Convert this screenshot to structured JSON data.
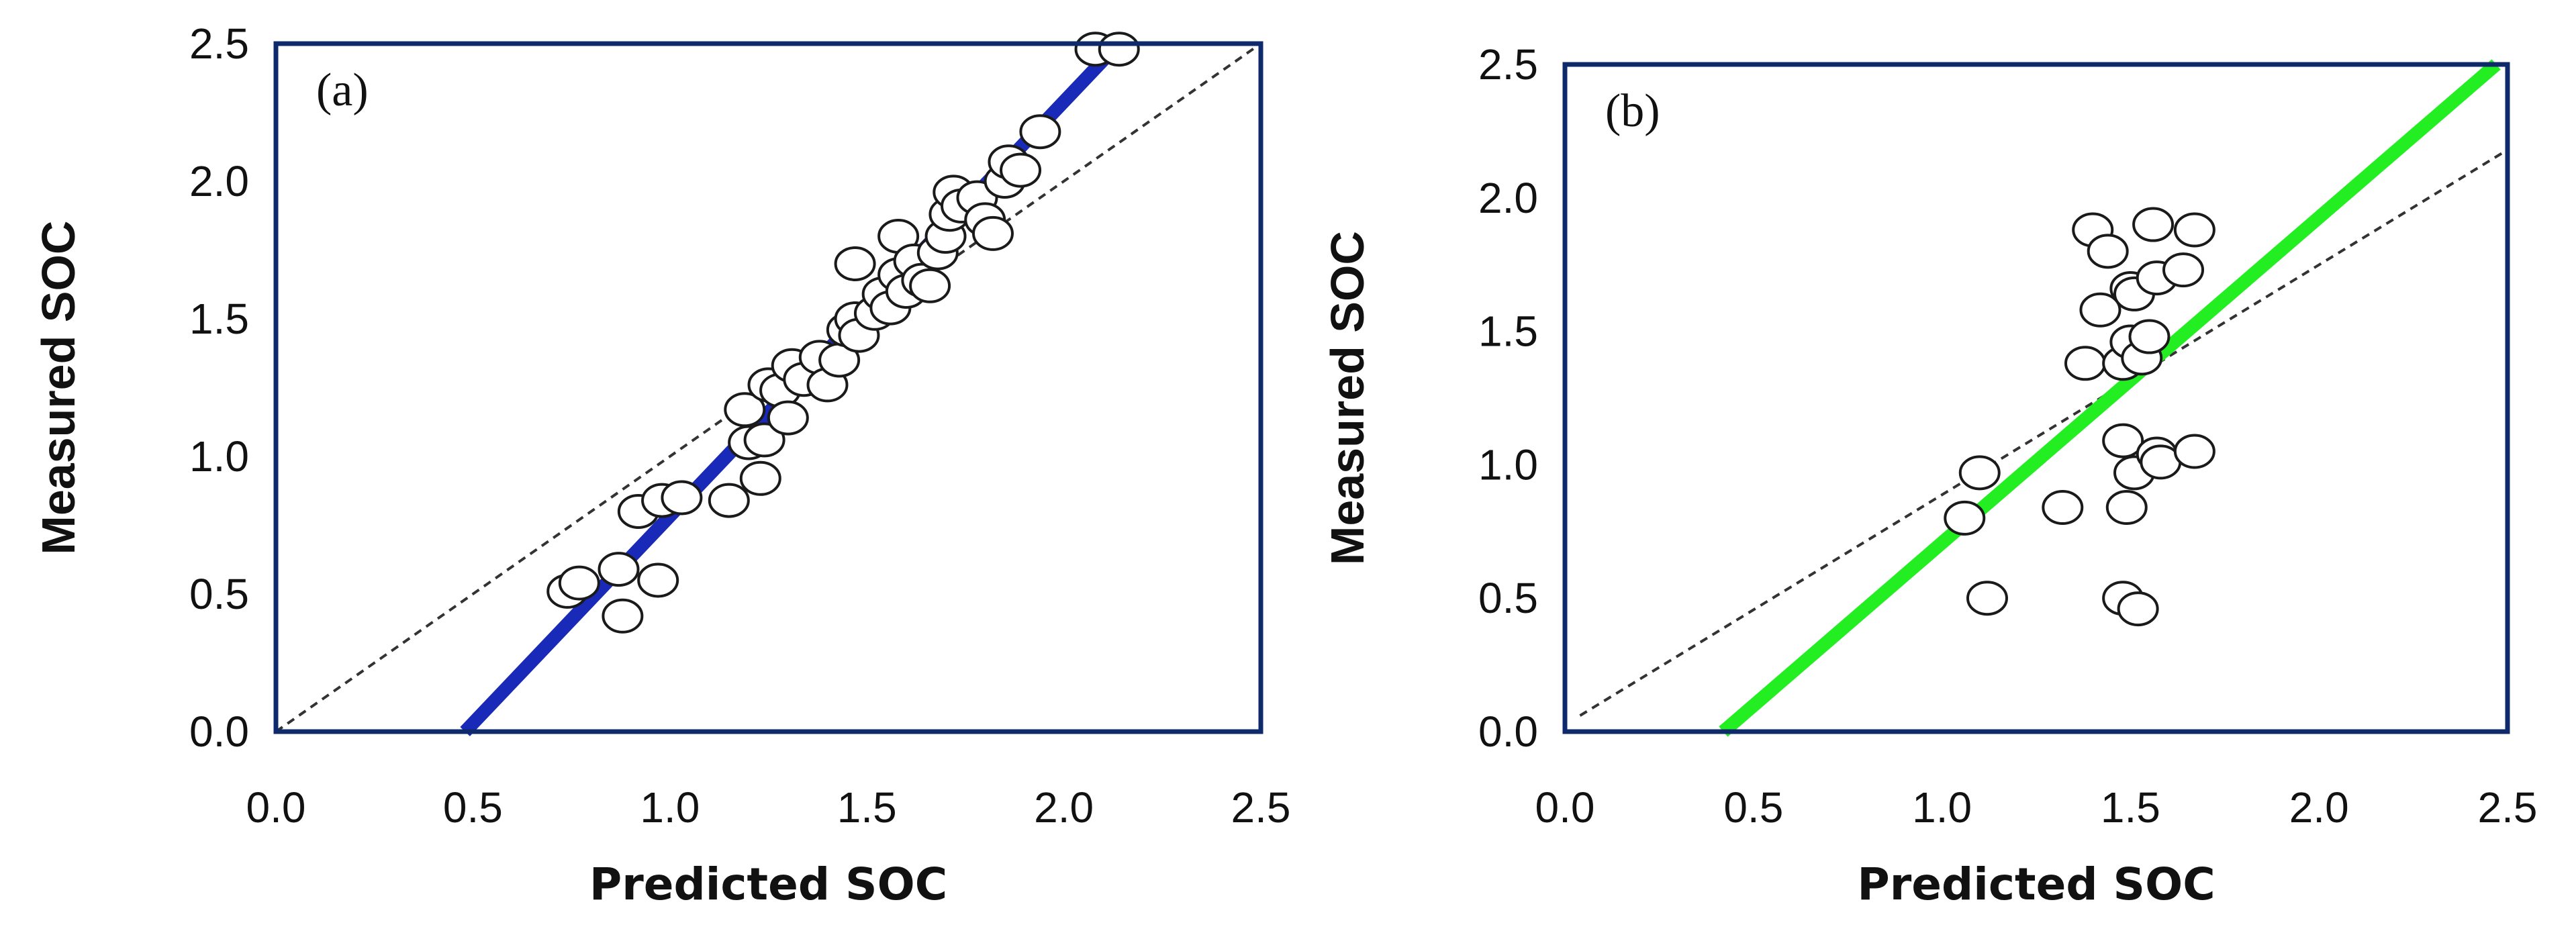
{
  "chart_data": [
    {
      "type": "scatter",
      "panel_label": "(a)",
      "xlabel": "Predicted SOC",
      "ylabel": "Measured SOC",
      "xlim": [
        0.0,
        2.5
      ],
      "ylim": [
        0.0,
        2.5
      ],
      "xticks": [
        "0.0",
        "0.5",
        "1.0",
        "1.5",
        "2.0",
        "2.5"
      ],
      "yticks": [
        "0.0",
        "0.5",
        "1.0",
        "1.5",
        "2.0",
        "2.5"
      ],
      "grid": false,
      "fit_color": "#1a2ab8",
      "fit_line": [
        [
          0.48,
          0.0
        ],
        [
          2.14,
          2.5
        ]
      ],
      "identity_line": [
        [
          0.0,
          0.0
        ],
        [
          2.5,
          2.5
        ]
      ],
      "points": [
        [
          0.74,
          0.51
        ],
        [
          0.77,
          0.54
        ],
        [
          0.87,
          0.59
        ],
        [
          0.88,
          0.42
        ],
        [
          0.92,
          0.8
        ],
        [
          0.97,
          0.55
        ],
        [
          0.98,
          0.84
        ],
        [
          1.03,
          0.85
        ],
        [
          1.15,
          0.84
        ],
        [
          1.19,
          1.17
        ],
        [
          1.2,
          1.05
        ],
        [
          1.23,
          0.92
        ],
        [
          1.24,
          1.06
        ],
        [
          1.25,
          1.26
        ],
        [
          1.28,
          1.24
        ],
        [
          1.3,
          1.14
        ],
        [
          1.31,
          1.33
        ],
        [
          1.34,
          1.28
        ],
        [
          1.38,
          1.36
        ],
        [
          1.4,
          1.26
        ],
        [
          1.43,
          1.35
        ],
        [
          1.45,
          1.46
        ],
        [
          1.47,
          1.5
        ],
        [
          1.47,
          1.7
        ],
        [
          1.48,
          1.44
        ],
        [
          1.52,
          1.52
        ],
        [
          1.54,
          1.59
        ],
        [
          1.56,
          1.54
        ],
        [
          1.58,
          1.8
        ],
        [
          1.58,
          1.66
        ],
        [
          1.6,
          1.6
        ],
        [
          1.62,
          1.71
        ],
        [
          1.64,
          1.64
        ],
        [
          1.66,
          1.62
        ],
        [
          1.68,
          1.74
        ],
        [
          1.7,
          1.8
        ],
        [
          1.71,
          1.88
        ],
        [
          1.72,
          1.96
        ],
        [
          1.74,
          1.91
        ],
        [
          1.78,
          1.94
        ],
        [
          1.8,
          1.86
        ],
        [
          1.82,
          1.81
        ],
        [
          1.85,
          2.0
        ],
        [
          1.86,
          2.07
        ],
        [
          1.89,
          2.04
        ],
        [
          1.94,
          2.18
        ],
        [
          2.08,
          2.48
        ],
        [
          2.14,
          2.48
        ]
      ]
    },
    {
      "type": "scatter",
      "panel_label": "(b)",
      "xlabel": "Predicted SOC",
      "ylabel": "Measured SOC",
      "xlim": [
        0.0,
        2.5
      ],
      "ylim": [
        0.0,
        2.5
      ],
      "xticks": [
        "0.0",
        "0.5",
        "1.0",
        "1.5",
        "2.0",
        "2.5"
      ],
      "yticks": [
        "0.0",
        "0.5",
        "1.0",
        "1.5",
        "2.0",
        "2.5"
      ],
      "grid": false,
      "fit_color": "#22ee22",
      "fit_line": [
        [
          0.42,
          0.0
        ],
        [
          2.47,
          2.5
        ]
      ],
      "identity_line": [
        [
          0.04,
          0.06
        ],
        [
          2.5,
          2.18
        ]
      ],
      "points": [
        [
          1.06,
          0.8
        ],
        [
          1.1,
          0.97
        ],
        [
          1.12,
          0.5
        ],
        [
          1.32,
          0.84
        ],
        [
          1.38,
          1.38
        ],
        [
          1.4,
          1.88
        ],
        [
          1.42,
          1.58
        ],
        [
          1.44,
          1.8
        ],
        [
          1.48,
          1.09
        ],
        [
          1.48,
          1.38
        ],
        [
          1.48,
          0.5
        ],
        [
          1.49,
          0.84
        ],
        [
          1.5,
          1.66
        ],
        [
          1.5,
          1.46
        ],
        [
          1.51,
          0.97
        ],
        [
          1.51,
          1.64
        ],
        [
          1.52,
          0.46
        ],
        [
          1.53,
          1.4
        ],
        [
          1.55,
          1.48
        ],
        [
          1.56,
          1.9
        ],
        [
          1.57,
          1.7
        ],
        [
          1.57,
          1.04
        ],
        [
          1.58,
          1.01
        ],
        [
          1.64,
          1.73
        ],
        [
          1.67,
          1.88
        ],
        [
          1.67,
          1.05
        ]
      ]
    }
  ]
}
